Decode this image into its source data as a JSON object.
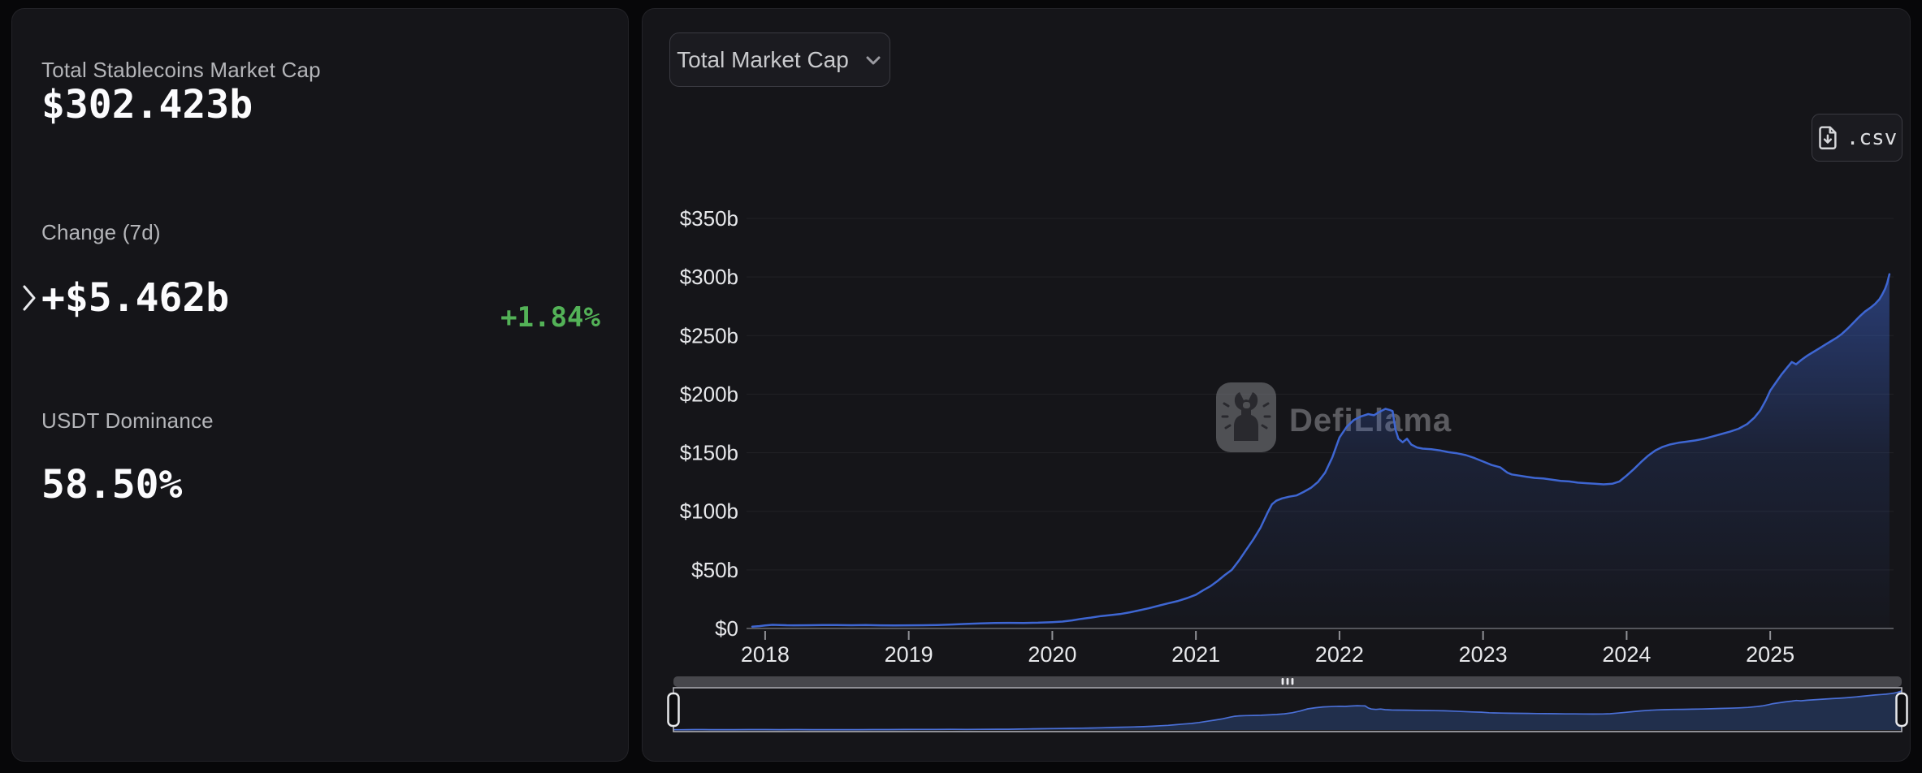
{
  "left_panel": {
    "stats": [
      {
        "label": "Total Stablecoins Market Cap",
        "value": "$302.423b"
      },
      {
        "label": "Change (7d)",
        "value": "+$5.462b",
        "change_pct": "+1.84%"
      },
      {
        "label": "USDT Dominance",
        "value": "58.50%"
      }
    ]
  },
  "right_panel": {
    "dropdown_label": "Total Market Cap",
    "csv_label": ".csv",
    "watermark": "DefiLlama"
  },
  "colors": {
    "page_bg": "#070709",
    "panel_bg": "#151519",
    "accent_blue": "#3e66d2",
    "positive_green": "#53b257",
    "label_gray": "#b4b5b9",
    "axis_line": "#55565b",
    "gridline": "rgba(255,255,255,0.055)"
  },
  "chart_data": {
    "type": "area",
    "title": "Total Stablecoins Market Cap",
    "xlabel": "",
    "ylabel": "",
    "units": "$ billions",
    "ylim": [
      0,
      350
    ],
    "xlim": [
      2017.91,
      2025.85
    ],
    "grid": "horizontal",
    "legend": "none",
    "line_color": "#3e66d2",
    "y_ticks": [
      {
        "v": 0,
        "label": "$0"
      },
      {
        "v": 50,
        "label": "$50b"
      },
      {
        "v": 100,
        "label": "$100b"
      },
      {
        "v": 150,
        "label": "$150b"
      },
      {
        "v": 200,
        "label": "$200b"
      },
      {
        "v": 250,
        "label": "$250b"
      },
      {
        "v": 300,
        "label": "$300b"
      },
      {
        "v": 350,
        "label": "$350b"
      }
    ],
    "x_ticks": [
      {
        "v": 2018,
        "label": "2018"
      },
      {
        "v": 2019,
        "label": "2019"
      },
      {
        "v": 2020,
        "label": "2020"
      },
      {
        "v": 2021,
        "label": "2021"
      },
      {
        "v": 2022,
        "label": "2022"
      },
      {
        "v": 2023,
        "label": "2023"
      },
      {
        "v": 2024,
        "label": "2024"
      },
      {
        "v": 2025,
        "label": "2025"
      }
    ],
    "points": [
      [
        2017.91,
        1.6
      ],
      [
        2017.96,
        2.0
      ],
      [
        2018.0,
        2.6
      ],
      [
        2018.05,
        3.1
      ],
      [
        2018.1,
        3.0
      ],
      [
        2018.15,
        2.8
      ],
      [
        2018.2,
        2.7
      ],
      [
        2018.3,
        2.8
      ],
      [
        2018.4,
        2.9
      ],
      [
        2018.5,
        2.9
      ],
      [
        2018.6,
        2.8
      ],
      [
        2018.7,
        2.9
      ],
      [
        2018.8,
        2.7
      ],
      [
        2018.9,
        2.6
      ],
      [
        2019.0,
        2.7
      ],
      [
        2019.1,
        2.8
      ],
      [
        2019.2,
        3.0
      ],
      [
        2019.3,
        3.4
      ],
      [
        2019.4,
        3.9
      ],
      [
        2019.5,
        4.4
      ],
      [
        2019.6,
        4.7
      ],
      [
        2019.7,
        4.8
      ],
      [
        2019.8,
        4.7
      ],
      [
        2019.9,
        4.9
      ],
      [
        2020.0,
        5.4
      ],
      [
        2020.07,
        5.9
      ],
      [
        2020.14,
        6.9
      ],
      [
        2020.2,
        8.2
      ],
      [
        2020.27,
        9.3
      ],
      [
        2020.34,
        10.6
      ],
      [
        2020.4,
        11.4
      ],
      [
        2020.47,
        12.3
      ],
      [
        2020.54,
        13.8
      ],
      [
        2020.6,
        15.3
      ],
      [
        2020.67,
        17.2
      ],
      [
        2020.74,
        19.4
      ],
      [
        2020.8,
        21.3
      ],
      [
        2020.87,
        23.3
      ],
      [
        2020.94,
        26.0
      ],
      [
        2021.0,
        28.8
      ],
      [
        2021.05,
        32.5
      ],
      [
        2021.1,
        36.0
      ],
      [
        2021.15,
        40.5
      ],
      [
        2021.2,
        45.5
      ],
      [
        2021.25,
        50.0
      ],
      [
        2021.3,
        58.0
      ],
      [
        2021.35,
        67.0
      ],
      [
        2021.4,
        76.0
      ],
      [
        2021.45,
        86.0
      ],
      [
        2021.5,
        99.0
      ],
      [
        2021.53,
        106.0
      ],
      [
        2021.56,
        109.0
      ],
      [
        2021.6,
        111.0
      ],
      [
        2021.65,
        112.5
      ],
      [
        2021.7,
        113.5
      ],
      [
        2021.75,
        116.5
      ],
      [
        2021.8,
        120.0
      ],
      [
        2021.85,
        125.0
      ],
      [
        2021.9,
        133.0
      ],
      [
        2021.95,
        146.0
      ],
      [
        2022.0,
        163.0
      ],
      [
        2022.05,
        172.0
      ],
      [
        2022.1,
        178.0
      ],
      [
        2022.15,
        181.0
      ],
      [
        2022.2,
        183.0
      ],
      [
        2022.24,
        182.0
      ],
      [
        2022.28,
        185.0
      ],
      [
        2022.32,
        187.5
      ],
      [
        2022.35,
        186.5
      ],
      [
        2022.37,
        185.5
      ],
      [
        2022.39,
        170.0
      ],
      [
        2022.41,
        162.0
      ],
      [
        2022.44,
        159.0
      ],
      [
        2022.47,
        162.0
      ],
      [
        2022.5,
        157.0
      ],
      [
        2022.54,
        154.5
      ],
      [
        2022.58,
        153.5
      ],
      [
        2022.64,
        153.0
      ],
      [
        2022.7,
        152.0
      ],
      [
        2022.76,
        150.5
      ],
      [
        2022.82,
        149.5
      ],
      [
        2022.88,
        148.0
      ],
      [
        2022.94,
        145.5
      ],
      [
        2023.0,
        142.5
      ],
      [
        2023.06,
        139.5
      ],
      [
        2023.12,
        137.5
      ],
      [
        2023.17,
        133.0
      ],
      [
        2023.2,
        131.5
      ],
      [
        2023.25,
        130.5
      ],
      [
        2023.3,
        129.5
      ],
      [
        2023.36,
        128.5
      ],
      [
        2023.42,
        128.0
      ],
      [
        2023.48,
        127.0
      ],
      [
        2023.54,
        126.0
      ],
      [
        2023.6,
        125.5
      ],
      [
        2023.66,
        124.5
      ],
      [
        2023.72,
        124.0
      ],
      [
        2023.78,
        123.5
      ],
      [
        2023.84,
        123.0
      ],
      [
        2023.9,
        123.5
      ],
      [
        2023.95,
        125.5
      ],
      [
        2024.0,
        130.5
      ],
      [
        2024.05,
        136.0
      ],
      [
        2024.1,
        142.0
      ],
      [
        2024.15,
        147.5
      ],
      [
        2024.2,
        152.0
      ],
      [
        2024.25,
        155.0
      ],
      [
        2024.3,
        157.0
      ],
      [
        2024.36,
        158.5
      ],
      [
        2024.42,
        159.5
      ],
      [
        2024.48,
        160.5
      ],
      [
        2024.54,
        162.0
      ],
      [
        2024.6,
        164.0
      ],
      [
        2024.66,
        166.0
      ],
      [
        2024.72,
        168.0
      ],
      [
        2024.78,
        170.5
      ],
      [
        2024.84,
        174.5
      ],
      [
        2024.89,
        180.0
      ],
      [
        2024.93,
        186.0
      ],
      [
        2024.97,
        195.0
      ],
      [
        2025.0,
        203.0
      ],
      [
        2025.04,
        210.0
      ],
      [
        2025.08,
        217.0
      ],
      [
        2025.12,
        223.0
      ],
      [
        2025.15,
        227.5
      ],
      [
        2025.18,
        225.5
      ],
      [
        2025.22,
        229.5
      ],
      [
        2025.26,
        233.0
      ],
      [
        2025.3,
        236.0
      ],
      [
        2025.34,
        239.0
      ],
      [
        2025.38,
        242.0
      ],
      [
        2025.42,
        245.0
      ],
      [
        2025.46,
        248.0
      ],
      [
        2025.5,
        251.5
      ],
      [
        2025.54,
        256.0
      ],
      [
        2025.58,
        261.0
      ],
      [
        2025.62,
        266.0
      ],
      [
        2025.66,
        270.5
      ],
      [
        2025.7,
        274.0
      ],
      [
        2025.73,
        277.0
      ],
      [
        2025.76,
        281.0
      ],
      [
        2025.78,
        285.0
      ],
      [
        2025.8,
        290.0
      ],
      [
        2025.815,
        295.0
      ],
      [
        2025.83,
        302.4
      ]
    ],
    "brush_full_range": true
  }
}
